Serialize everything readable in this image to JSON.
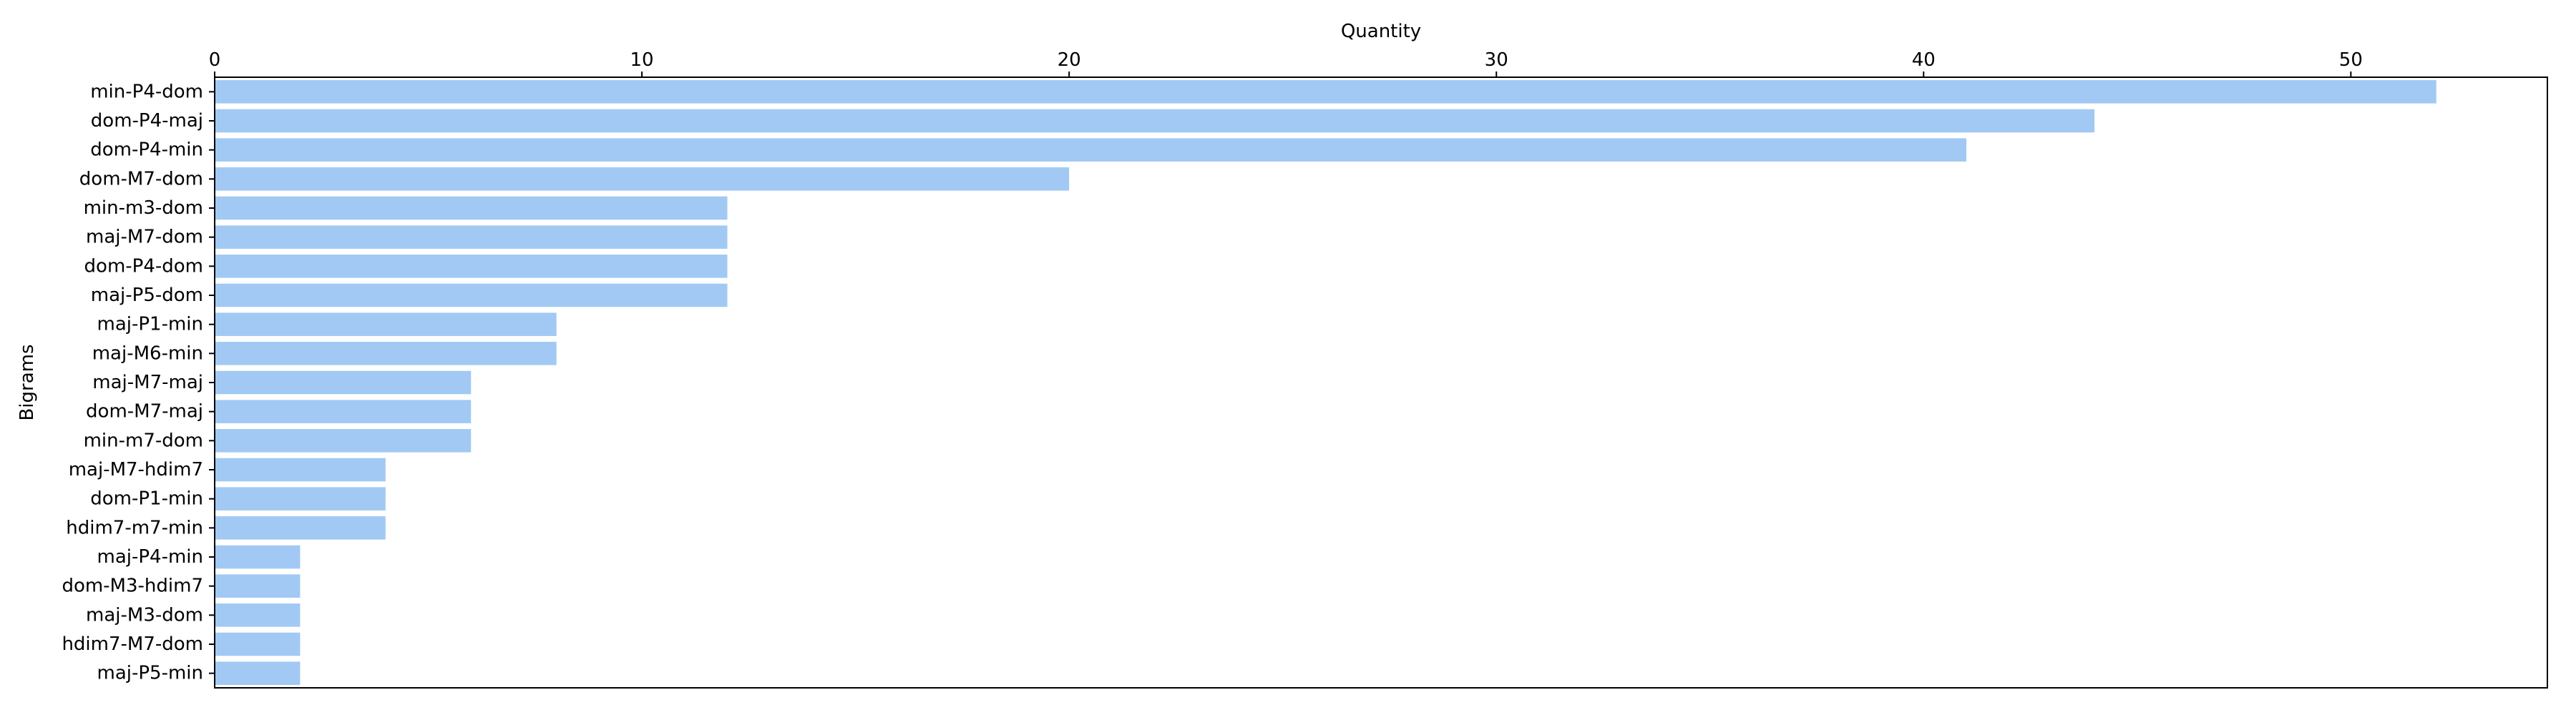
{
  "chart_data": {
    "type": "bar",
    "orientation": "horizontal",
    "xlabel": "Quantity",
    "ylabel": "Bigrams",
    "xaxis_position": "top",
    "xlim": [
      0,
      54.6
    ],
    "xticks": [
      0,
      10,
      20,
      30,
      40,
      50
    ],
    "grid": false,
    "bar_color": "#a1c9f4",
    "categories": [
      "min-P4-dom",
      "dom-P4-maj",
      "dom-P4-min",
      "dom-M7-dom",
      "min-m3-dom",
      "maj-M7-dom",
      "dom-P4-dom",
      "maj-P5-dom",
      "maj-P1-min",
      "maj-M6-min",
      "maj-M7-maj",
      "dom-M7-maj",
      "min-m7-dom",
      "maj-M7-hdim7",
      "dom-P1-min",
      "hdim7-m7-min",
      "maj-P4-min",
      "dom-M3-hdim7",
      "maj-M3-dom",
      "hdim7-M7-dom",
      "maj-P5-min"
    ],
    "values": [
      52,
      44,
      41,
      20,
      12,
      12,
      12,
      12,
      8,
      8,
      6,
      6,
      6,
      4,
      4,
      4,
      2,
      2,
      2,
      2,
      2
    ]
  }
}
